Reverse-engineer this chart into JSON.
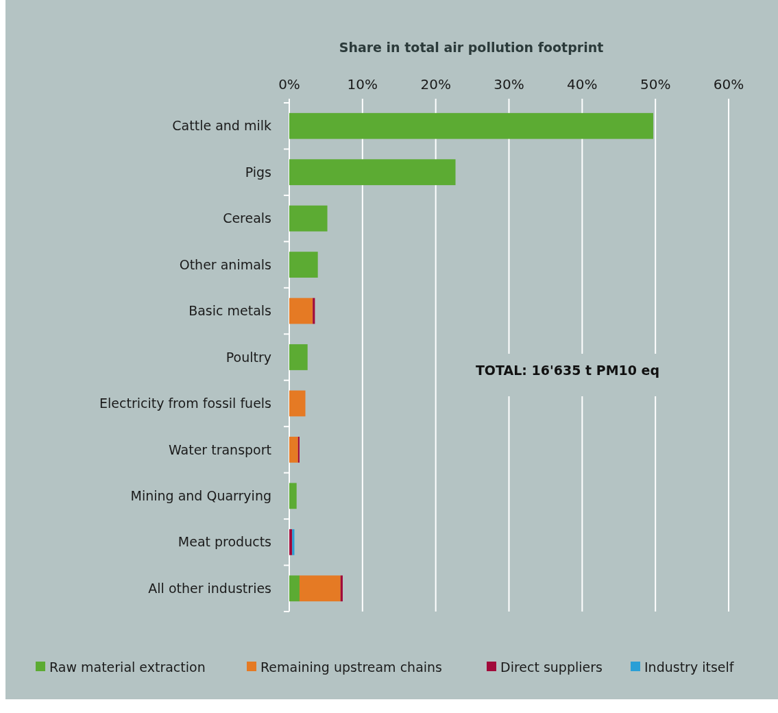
{
  "chart_data": {
    "type": "bar",
    "orientation": "horizontal",
    "stacked": true,
    "xlabel": "Share in total air pollution footprint",
    "categories": [
      "Cattle and milk",
      "Pigs",
      "Cereals",
      "Other animals",
      "Basic metals",
      "Poultry",
      "Electricity from fossil fuels",
      "Water transport",
      "Mining and Quarrying",
      "Meat products",
      "All other industries"
    ],
    "series": [
      {
        "name": "Raw material extraction",
        "color": "#5cab33",
        "values": [
          49.7,
          22.7,
          5.2,
          3.9,
          0,
          2.5,
          0,
          0,
          1.0,
          0,
          1.4
        ]
      },
      {
        "name": "Remaining upstream chains",
        "color": "#e57a24",
        "values": [
          0,
          0,
          0,
          0,
          3.2,
          0,
          2.2,
          1.2,
          0,
          0,
          5.6
        ]
      },
      {
        "name": "Direct suppliers",
        "color": "#a10a3a",
        "values": [
          0,
          0,
          0,
          0,
          0.3,
          0,
          0,
          0.2,
          0,
          0.4,
          0.3
        ]
      },
      {
        "name": "Industry itself",
        "color": "#2a9fd6",
        "values": [
          0,
          0,
          0,
          0,
          0,
          0,
          0,
          0,
          0,
          0.3,
          0
        ]
      }
    ],
    "xlim": [
      0,
      60
    ],
    "xticks": [
      {
        "value": 0,
        "label": "0%"
      },
      {
        "value": 10,
        "label": "10%"
      },
      {
        "value": 20,
        "label": "20%"
      },
      {
        "value": 30,
        "label": "30%"
      },
      {
        "value": 40,
        "label": "40%"
      },
      {
        "value": 50,
        "label": "50%"
      },
      {
        "value": 60,
        "label": "60%"
      }
    ],
    "grid": "x",
    "legend": "bottom",
    "annotations": [
      "TOTAL: 16'635 t PM10 eq"
    ]
  }
}
